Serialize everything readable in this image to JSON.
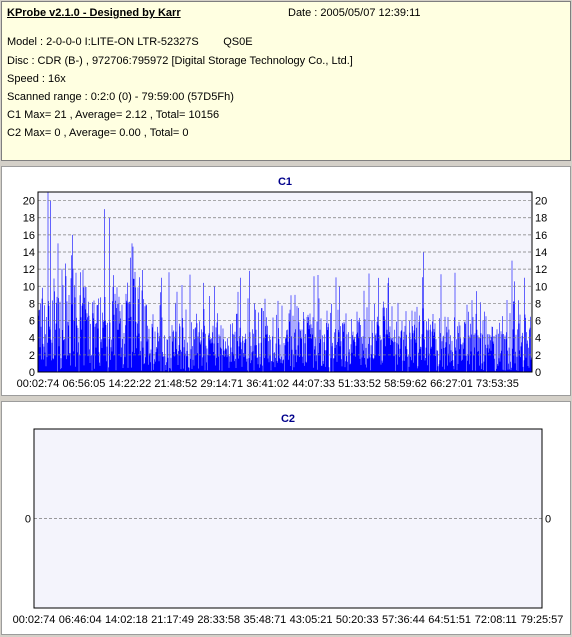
{
  "info": {
    "title": "KProbe v2.1.0 - Designed by Karr",
    "date": "Date : 2005/05/07 12:39:11",
    "model": "Model : 2-0-0-0 I:LITE-ON LTR-52327S        QS0E",
    "disc": "Disc : CDR (B-) , 972706:795972 [Digital Storage Technology Co., Ltd.]",
    "speed": "Speed : 16x",
    "range": "Scanned range : 0:2:0 (0) - 79:59:00 (57D5Fh)",
    "c1": "C1 Max= 21 , Average= 2.12 , Total= 10156",
    "c2": "C2 Max= 0 , Average= 0.00 , Total= 0"
  },
  "colors": {
    "bar": "#0000ff",
    "plot_bg": "#f4f4fc",
    "grid": "#7a7a7a",
    "title": "#00008b",
    "info_bg": "#ffffe1"
  },
  "chart_data": [
    {
      "type": "bar",
      "title": "C1",
      "ylim": [
        0,
        21
      ],
      "y_ticks": [
        "0",
        "2",
        "4",
        "6",
        "8",
        "10",
        "12",
        "14",
        "16",
        "18",
        "20"
      ],
      "x_tick_labels": [
        "00:02:74",
        "06:56:05",
        "14:22:22",
        "21:48:52",
        "29:14:71",
        "36:41:02",
        "44:07:33",
        "51:33:52",
        "58:59:62",
        "66:27:01",
        "73:53:35"
      ],
      "max": 21,
      "average": 2.12,
      "total": 10156,
      "peaks": [
        {
          "pos": 0.02,
          "value": 21
        },
        {
          "pos": 0.025,
          "value": 20
        },
        {
          "pos": 0.07,
          "value": 16
        },
        {
          "pos": 0.135,
          "value": 19
        },
        {
          "pos": 0.145,
          "value": 18
        },
        {
          "pos": 0.19,
          "value": 15
        },
        {
          "pos": 0.25,
          "value": 11
        },
        {
          "pos": 0.41,
          "value": 11
        },
        {
          "pos": 0.52,
          "value": 9
        },
        {
          "pos": 0.61,
          "value": 10
        },
        {
          "pos": 0.71,
          "value": 11
        },
        {
          "pos": 0.78,
          "value": 14
        },
        {
          "pos": 0.96,
          "value": 13
        },
        {
          "pos": 0.985,
          "value": 11
        }
      ]
    },
    {
      "type": "bar",
      "title": "C2",
      "ylim": [
        -1,
        1
      ],
      "y_ticks": [
        "0"
      ],
      "x_tick_labels": [
        "00:02:74",
        "06:46:04",
        "14:02:18",
        "21:17:49",
        "28:33:58",
        "35:48:71",
        "43:05:21",
        "50:20:33",
        "57:36:44",
        "64:51:51",
        "72:08:11",
        "79:25:57"
      ],
      "max": 0,
      "average": 0.0,
      "total": 0
    }
  ]
}
